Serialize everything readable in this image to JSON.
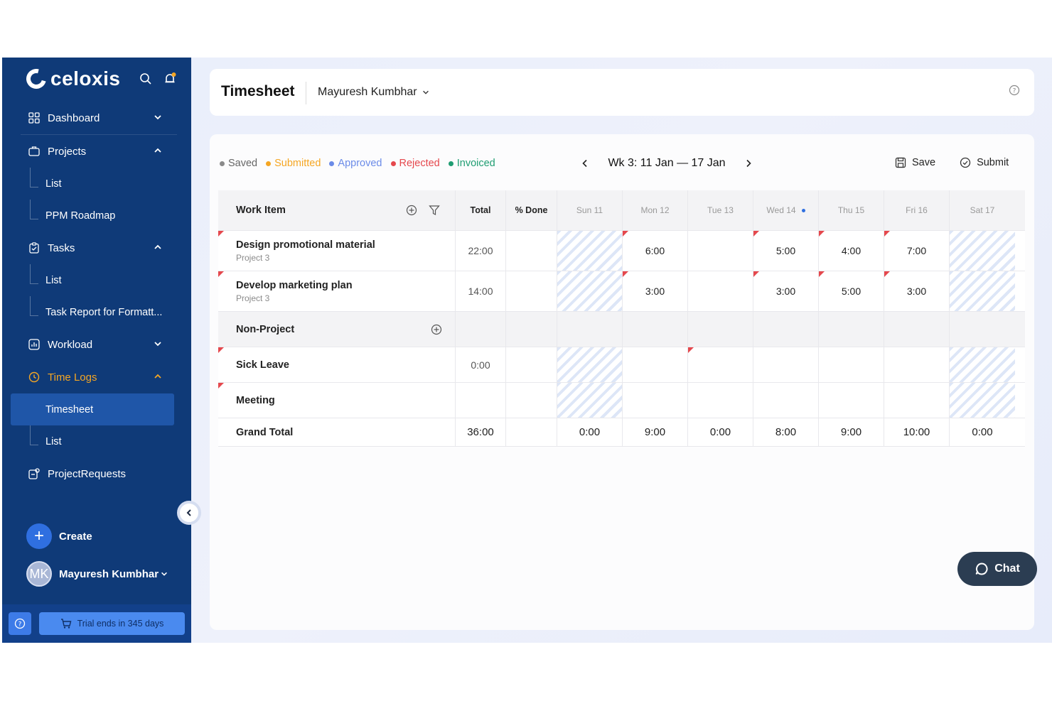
{
  "brand": {
    "name": "celoxis"
  },
  "sidebar": {
    "items": [
      {
        "label": "Dashboard"
      },
      {
        "label": "Projects"
      },
      {
        "label": "List"
      },
      {
        "label": "PPM Roadmap"
      },
      {
        "label": "Tasks"
      },
      {
        "label": "List"
      },
      {
        "label": "Task Report for Formatt..."
      },
      {
        "label": "Workload"
      },
      {
        "label": "Time Logs"
      },
      {
        "label": "Timesheet"
      },
      {
        "label": "List"
      },
      {
        "label": "ProjectRequests"
      }
    ],
    "create_label": "Create",
    "user_initials": "MK",
    "user_name": "Mayuresh Kumbhar",
    "trial_text": "Trial ends in 345 days"
  },
  "header": {
    "title": "Timesheet",
    "user": "Mayuresh Kumbhar"
  },
  "legend": {
    "saved": "Saved",
    "submitted": "Submitted",
    "approved": "Approved",
    "rejected": "Rejected",
    "invoiced": "Invoiced"
  },
  "colors": {
    "saved": "#8a8a8a",
    "submitted": "#f5a623",
    "approved": "#6b8be8",
    "rejected": "#e5484d",
    "invoiced": "#1f9d72",
    "sidebar": "#0f3a78",
    "accent": "#2f6fe0"
  },
  "week": {
    "label": "Wk 3: 11 Jan — 17 Jan"
  },
  "actions": {
    "save": "Save",
    "submit": "Submit"
  },
  "grid": {
    "headers": {
      "item": "Work Item",
      "total": "Total",
      "done": "% Done",
      "days": [
        "Sun 11",
        "Mon 12",
        "Tue 13",
        "Wed 14",
        "Thu 15",
        "Fri 16",
        "Sat 17"
      ]
    },
    "tasks": [
      {
        "name": "Design promotional material",
        "project": "Project 3",
        "total": "22:00",
        "done": "",
        "days": [
          "",
          "6:00",
          "",
          "5:00",
          "4:00",
          "7:00",
          ""
        ]
      },
      {
        "name": "Develop marketing plan",
        "project": "Project 3",
        "total": "14:00",
        "done": "",
        "days": [
          "",
          "3:00",
          "",
          "3:00",
          "5:00",
          "3:00",
          ""
        ]
      }
    ],
    "section": "Non-Project",
    "non_project": [
      {
        "name": "Sick Leave",
        "total": "0:00"
      },
      {
        "name": "Meeting",
        "total": ""
      }
    ],
    "grand_total": {
      "label": "Grand Total",
      "total": "36:00",
      "days": [
        "0:00",
        "9:00",
        "0:00",
        "8:00",
        "9:00",
        "10:00",
        "0:00"
      ]
    }
  },
  "chat": {
    "label": "Chat"
  }
}
